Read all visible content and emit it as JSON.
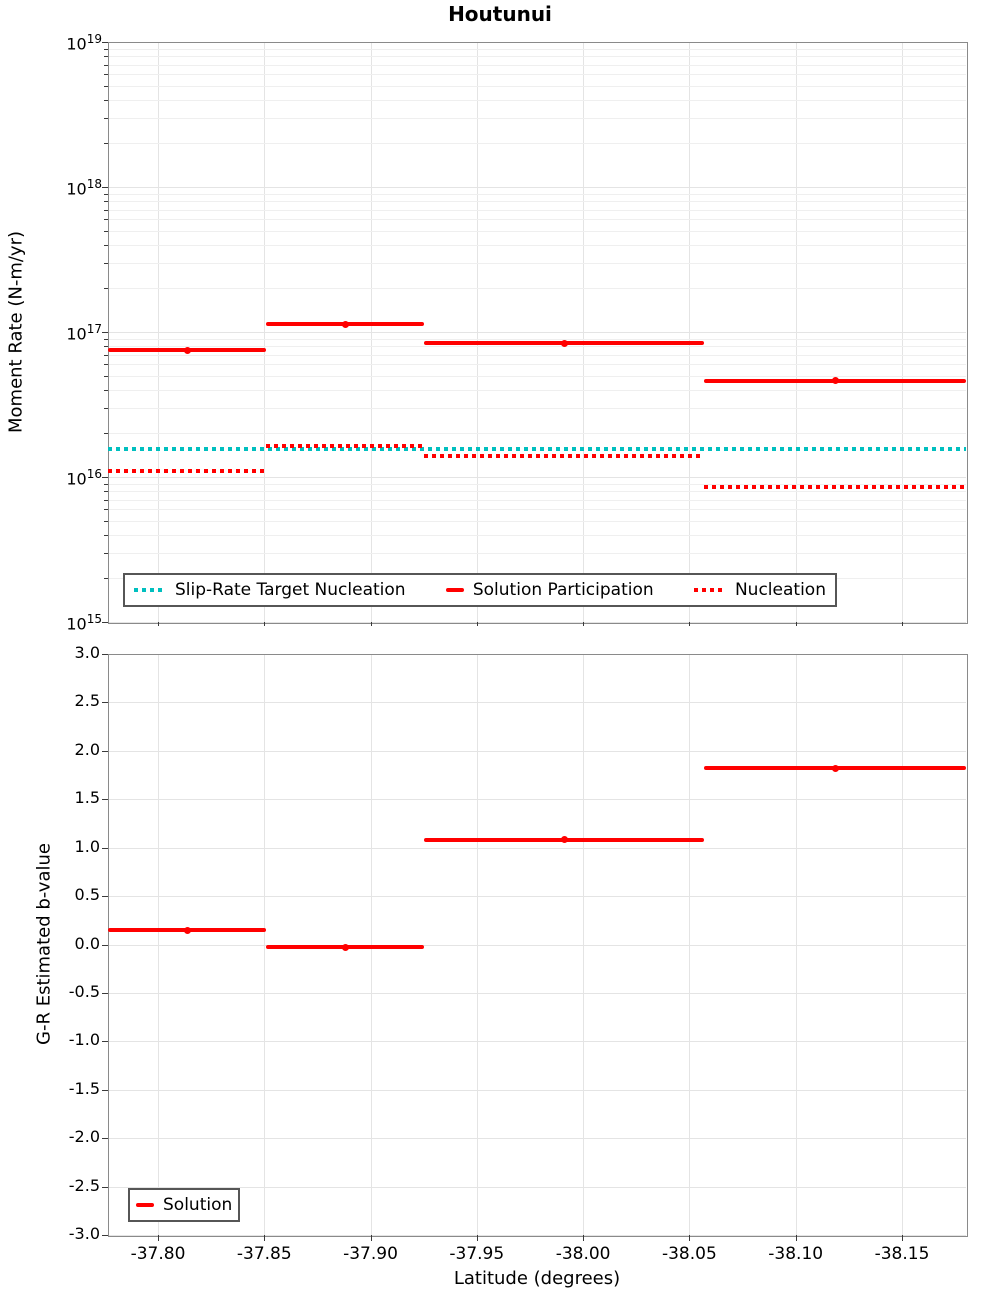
{
  "title": "Houtunui",
  "colors": {
    "series_red": "#ff0000",
    "series_cyan": "#00bfbf",
    "grid_major": "#e4e4e4",
    "grid_minor": "#efefef",
    "spine": "#8a8a8a",
    "legend_border": "#565656"
  },
  "chart_data": [
    {
      "type": "line",
      "subtype": "step-bins",
      "panel": "top",
      "title": "Houtunui",
      "ylabel": "Moment Rate (N-m/yr)",
      "yscale": "log",
      "ylim": [
        1000000000000000.0,
        1e+19
      ],
      "ytick_exponents": [
        19,
        18,
        17,
        16,
        15
      ],
      "xlim": [
        -37.7765,
        -38.1801
      ],
      "x_inverted": true,
      "xticks": [
        -37.8,
        -37.85,
        -37.9,
        -37.95,
        -38.0,
        -38.05,
        -38.1,
        -38.15
      ],
      "grid": "both-major-and-minor",
      "bin_edges": [
        -37.7765,
        -37.851,
        -37.925,
        -38.057,
        -38.1801
      ],
      "series": [
        {
          "name": "Slip-Rate Target Nucleation",
          "color": "#00bfbf",
          "style": "dotted",
          "constant": true,
          "values": [
            1.55e+16,
            1.55e+16,
            1.55e+16,
            1.55e+16
          ]
        },
        {
          "name": "Solution Participation",
          "color": "#ff0000",
          "style": "solid",
          "markers": true,
          "values": [
            7.5e+16,
            1.13e+17,
            8.4e+16,
            4.6e+16
          ]
        },
        {
          "name": "Nucleation",
          "color": "#ff0000",
          "style": "dotted",
          "values": [
            1.1e+16,
            1.65e+16,
            1.4e+16,
            8600000000000000.0
          ]
        }
      ],
      "legend_position": "lower left inside"
    },
    {
      "type": "line",
      "subtype": "step-bins",
      "panel": "bottom",
      "ylabel": "G-R Estimated b-value",
      "xlabel": "Latitude (degrees)",
      "yscale": "linear",
      "ylim": [
        -3.0,
        3.0
      ],
      "yticks": [
        3.0,
        2.5,
        2.0,
        1.5,
        1.0,
        0.5,
        0.0,
        -0.5,
        -1.0,
        -1.5,
        -2.0,
        -2.5,
        -3.0
      ],
      "xlim": [
        -37.7765,
        -38.1801
      ],
      "x_inverted": true,
      "xticks": [
        -37.8,
        -37.85,
        -37.9,
        -37.95,
        -38.0,
        -38.05,
        -38.1,
        -38.15
      ],
      "grid": "major",
      "bin_edges": [
        -37.7765,
        -37.851,
        -37.925,
        -38.057,
        -38.1801
      ],
      "series": [
        {
          "name": "Solution",
          "color": "#ff0000",
          "style": "solid",
          "markers": true,
          "values": [
            0.15,
            -0.03,
            1.08,
            1.82
          ]
        }
      ],
      "legend_position": "lower left inside"
    }
  ]
}
